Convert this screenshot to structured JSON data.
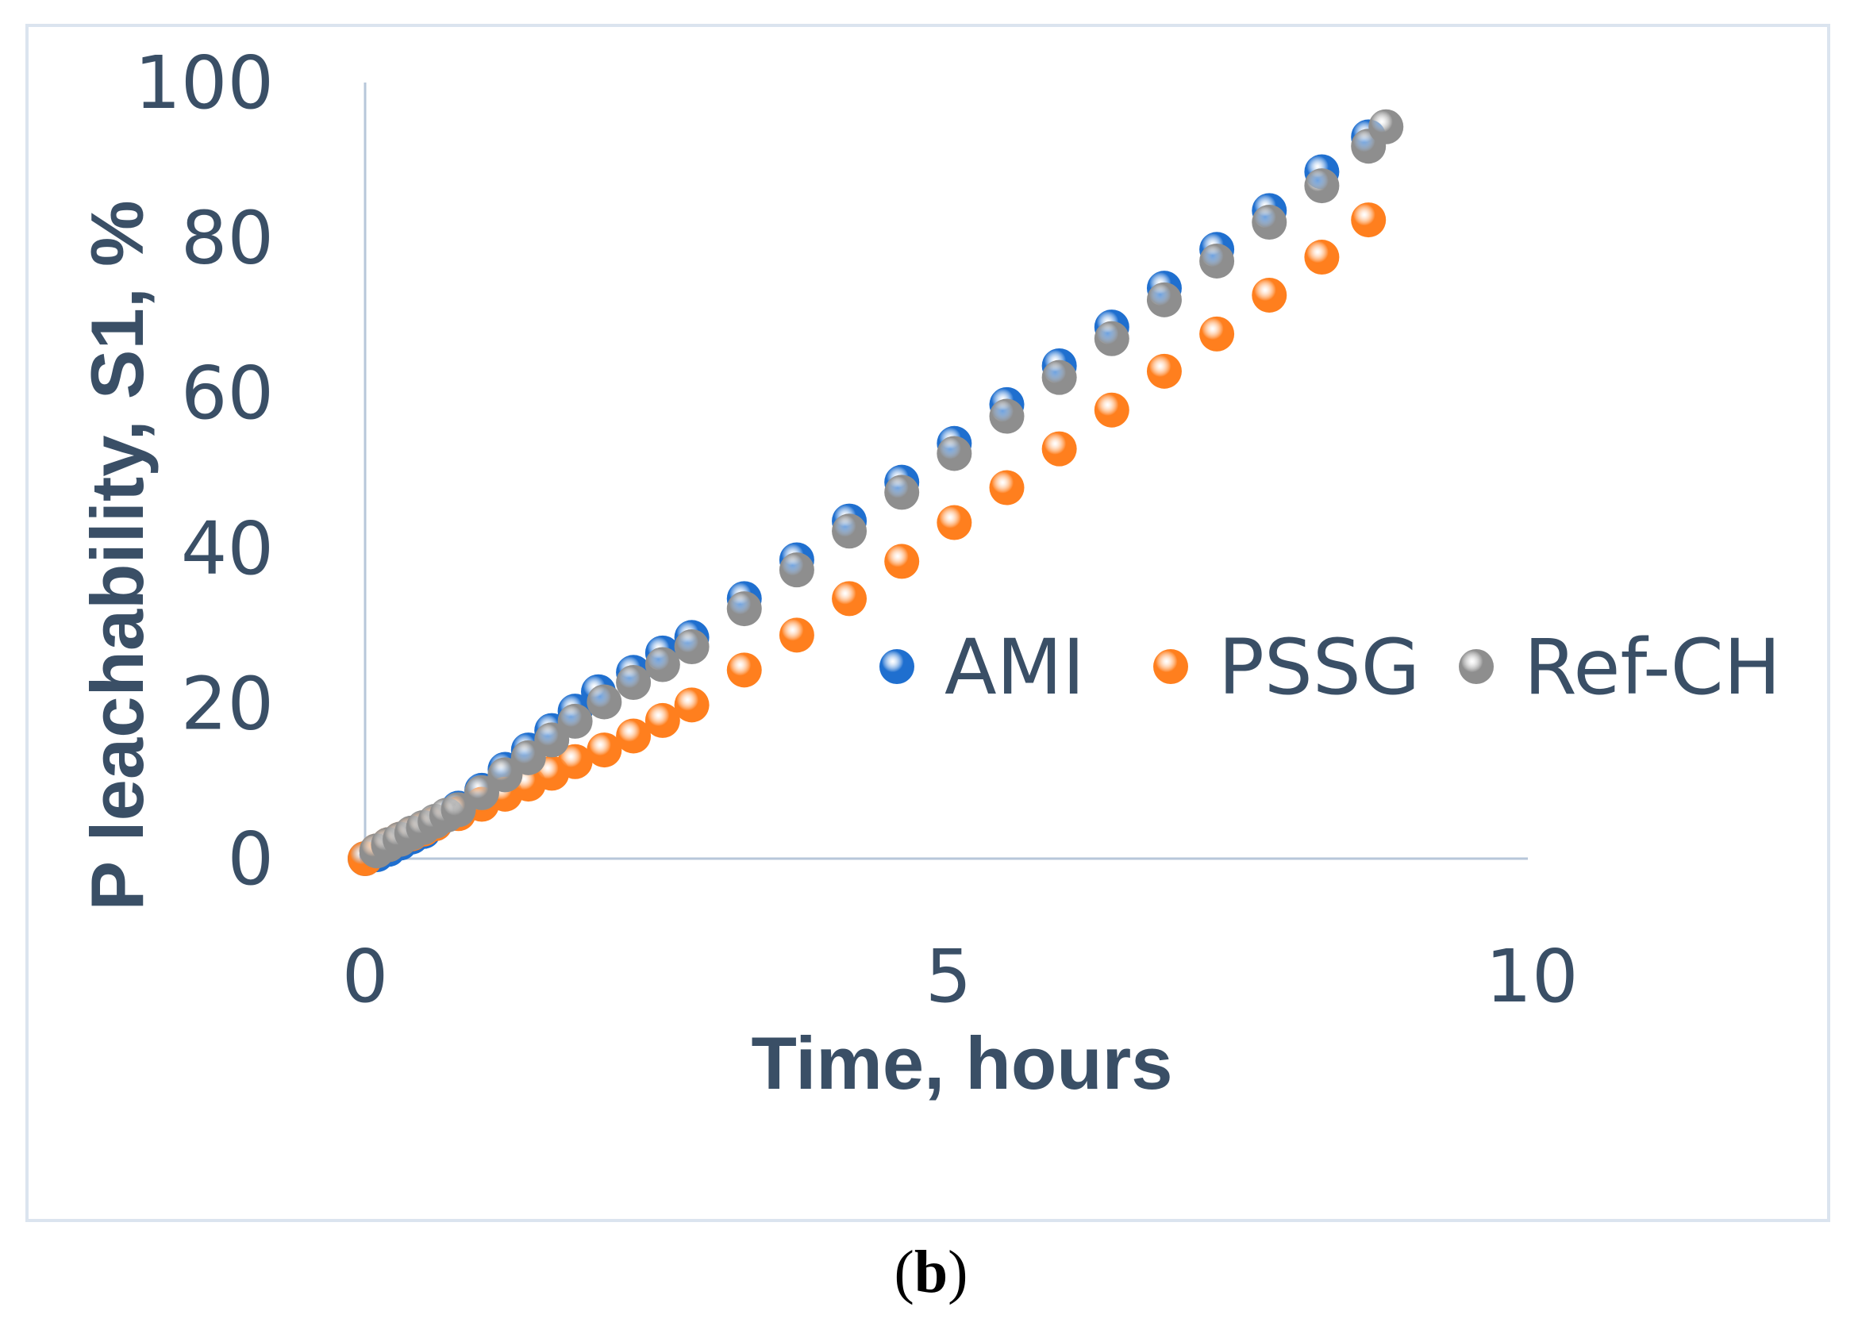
{
  "chart_data": {
    "type": "scatter",
    "xlabel": "Time, hours",
    "ylabel": "P leachability, S1, %",
    "xlim": [
      0,
      10
    ],
    "ylim": [
      0,
      100
    ],
    "x_ticks": [
      "0",
      "5",
      "10"
    ],
    "y_ticks": [
      "0",
      "20",
      "40",
      "60",
      "80",
      "100"
    ],
    "grid": false,
    "legend_position": "center-right",
    "series": [
      {
        "name": "AMI",
        "color": "#1f6fcf",
        "x": [
          0,
          0.1,
          0.2,
          0.3,
          0.4,
          0.5,
          0.6,
          0.8,
          1.0,
          1.2,
          1.4,
          1.6,
          1.8,
          2.0,
          2.3,
          2.55,
          2.8,
          3.25,
          3.7,
          4.15,
          4.6,
          5.05,
          5.5,
          5.95,
          6.4,
          6.85,
          7.3,
          7.75,
          8.2,
          8.6
        ],
        "y": [
          0,
          0.5,
          1.2,
          2.0,
          2.8,
          3.5,
          4.5,
          6.5,
          8.8,
          11.5,
          14,
          16.5,
          19,
          21.5,
          24,
          26.5,
          28.5,
          33.5,
          38.5,
          43.5,
          48.5,
          53.5,
          58.5,
          63.5,
          68.5,
          73.5,
          78.5,
          83.5,
          88.5,
          93
        ]
      },
      {
        "name": "PSSG",
        "color": "#ff7f1e",
        "x": [
          0,
          0.1,
          0.2,
          0.3,
          0.4,
          0.5,
          0.6,
          0.8,
          1.0,
          1.2,
          1.4,
          1.6,
          1.8,
          2.05,
          2.3,
          2.55,
          2.8,
          3.25,
          3.7,
          4.15,
          4.6,
          5.05,
          5.5,
          5.95,
          6.4,
          6.85,
          7.3,
          7.75,
          8.2,
          8.6
        ],
        "y": [
          0,
          1.0,
          1.8,
          2.5,
          3.2,
          3.8,
          4.5,
          5.8,
          7.0,
          8.3,
          9.6,
          11.0,
          12.5,
          14.0,
          15.8,
          17.8,
          19.8,
          24.3,
          28.8,
          33.5,
          38.3,
          43.3,
          47.8,
          52.8,
          57.8,
          62.8,
          67.6,
          72.6,
          77.5,
          82.3
        ]
      },
      {
        "name": "Ref-CH",
        "color": "#8e8e8e",
        "x": [
          0.1,
          0.2,
          0.3,
          0.4,
          0.5,
          0.6,
          0.7,
          0.8,
          1.0,
          1.2,
          1.4,
          1.6,
          1.8,
          2.05,
          2.3,
          2.55,
          2.8,
          3.25,
          3.7,
          4.15,
          4.6,
          5.05,
          5.5,
          5.95,
          6.4,
          6.85,
          7.3,
          7.75,
          8.2,
          8.6,
          8.75
        ],
        "y": [
          1.0,
          1.8,
          2.5,
          3.3,
          4.0,
          4.8,
          5.6,
          6.3,
          8.5,
          10.8,
          13,
          15.3,
          17.7,
          20.2,
          22.7,
          25,
          27.3,
          32.2,
          37.2,
          42.2,
          47.2,
          52.2,
          57,
          62,
          67,
          72,
          77,
          82,
          86.7,
          91.8,
          94.3
        ]
      }
    ]
  },
  "caption": {
    "open": "(",
    "letter": "b",
    "close": ")"
  }
}
